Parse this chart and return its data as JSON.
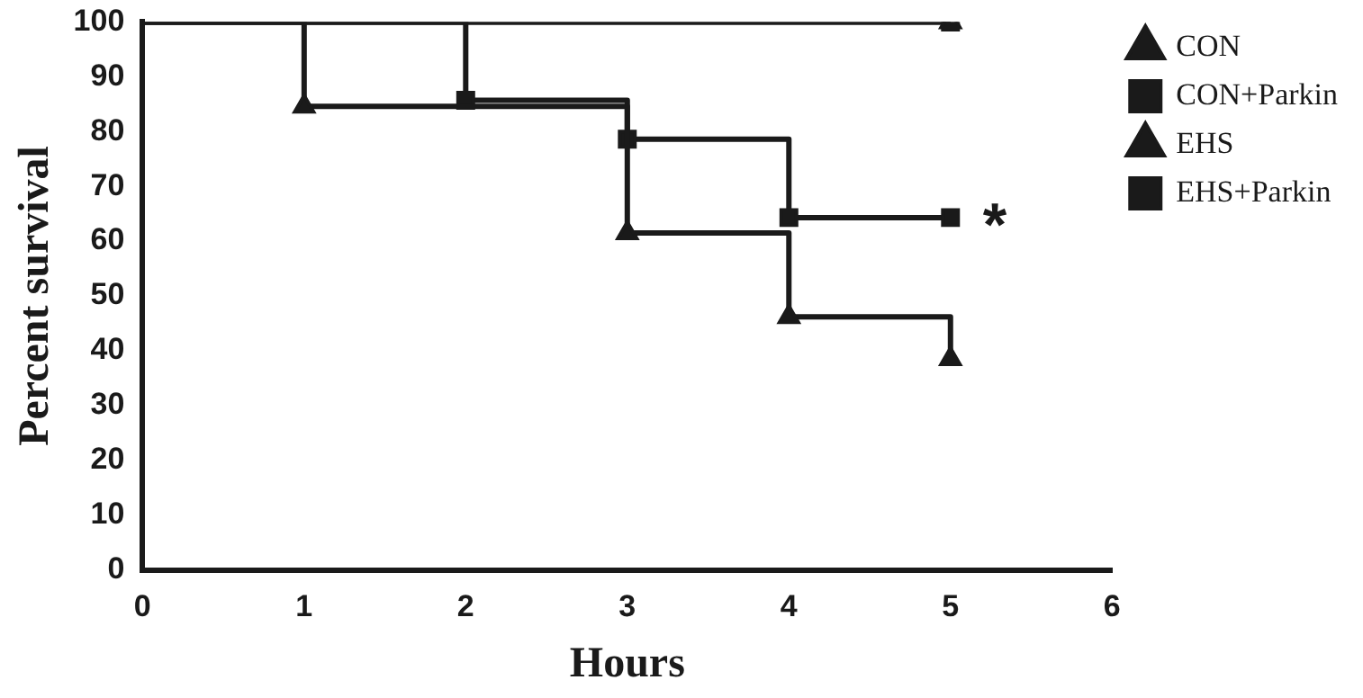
{
  "chart_data": {
    "type": "step",
    "xlabel": "Hours",
    "ylabel": "Percent survival",
    "xlim": [
      0,
      6
    ],
    "xticks": [
      0,
      1,
      2,
      3,
      4,
      5,
      6
    ],
    "ylim": [
      0,
      100
    ],
    "yticks": [
      0,
      10,
      20,
      30,
      40,
      50,
      60,
      70,
      80,
      90,
      100
    ],
    "grid": false,
    "legend": "right",
    "series": [
      {
        "name": "CON",
        "color": "#1a1a1a",
        "marker": "triangle",
        "x": [
          0,
          5
        ],
        "values": [
          100,
          100
        ]
      },
      {
        "name": "CON+Parkin",
        "color": "#1a1a1a",
        "marker": "square",
        "x": [
          0,
          5
        ],
        "values": [
          100,
          100
        ]
      },
      {
        "name": "EHS",
        "color": "#1a1a1a",
        "marker": "triangle",
        "x": [
          0,
          1,
          3,
          4,
          5
        ],
        "values": [
          100,
          84.6,
          61.5,
          46.2,
          38.5
        ]
      },
      {
        "name": "EHS+Parkin",
        "color": "#1a1a1a",
        "marker": "square",
        "x": [
          0,
          2,
          3,
          4,
          5
        ],
        "values": [
          100,
          85.7,
          78.6,
          64.3,
          64.3
        ]
      }
    ],
    "annotations": [
      {
        "text": "*",
        "x": 5,
        "y": 64.3
      }
    ]
  }
}
